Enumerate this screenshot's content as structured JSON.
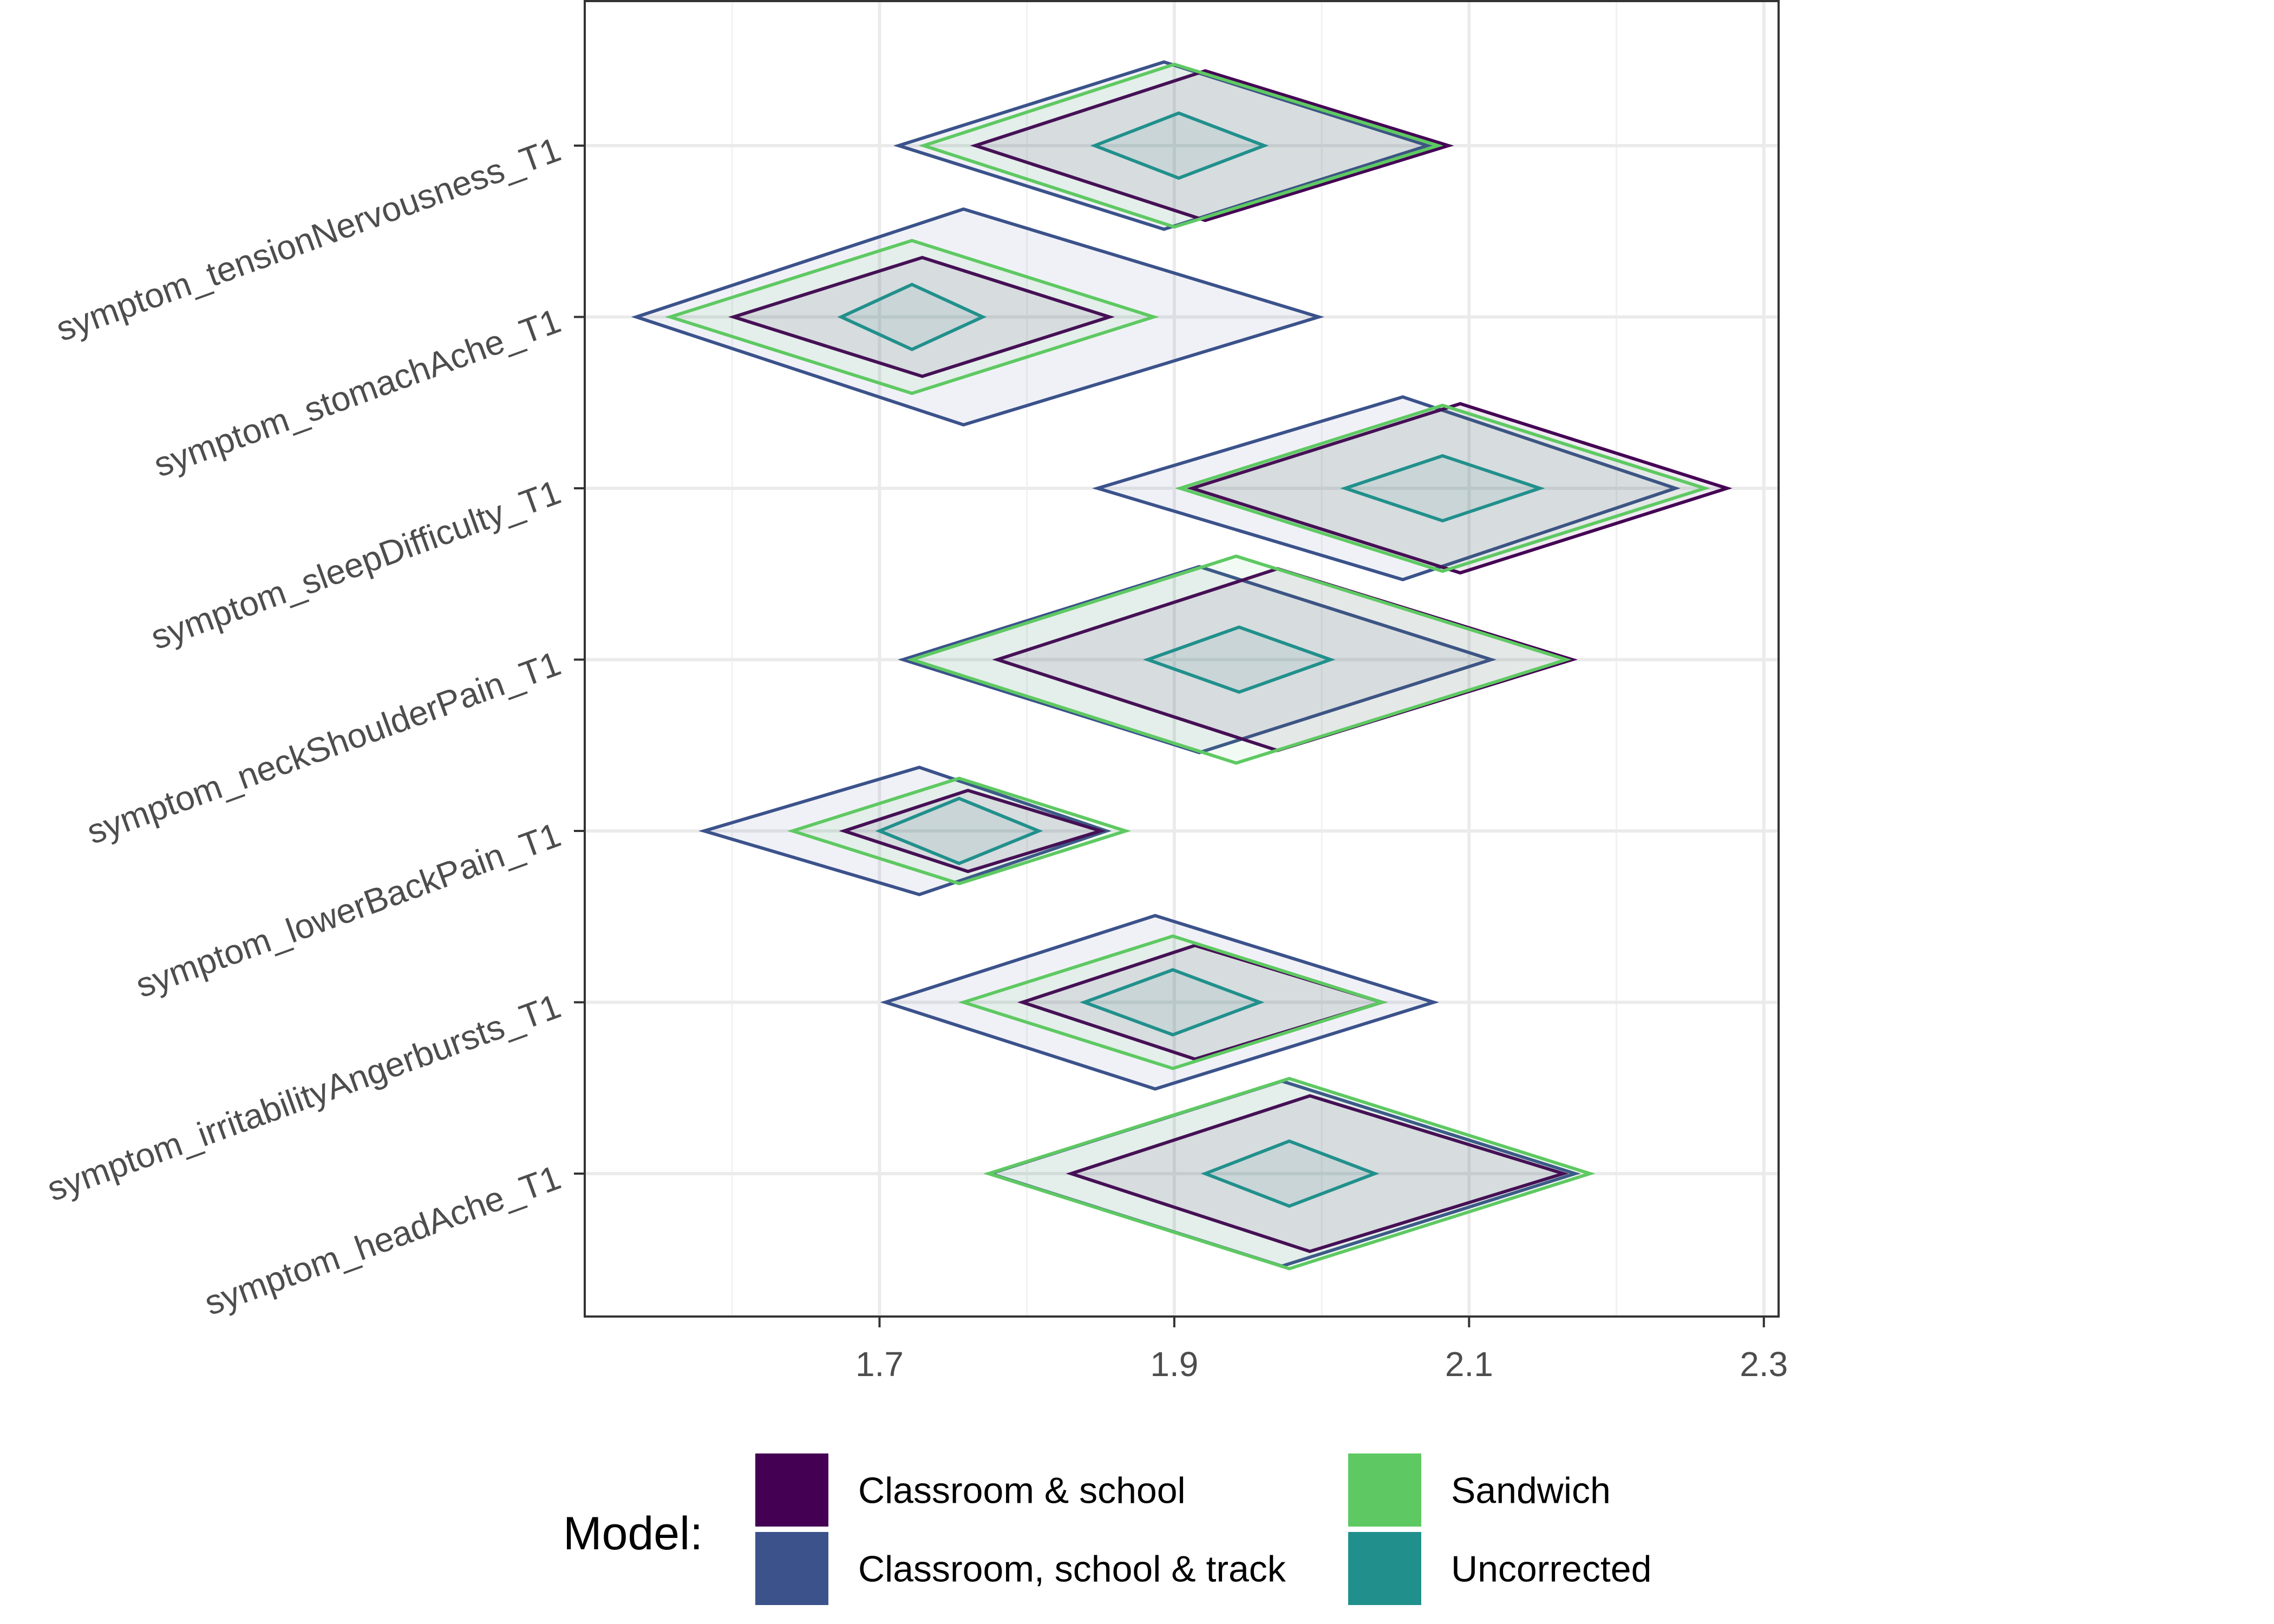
{
  "chart_data": {
    "type": "diamond-interval",
    "title": "",
    "xlabel": "",
    "ylabel": "",
    "xlim": [
      1.5,
      2.31
    ],
    "x_ticks": [
      "1.7",
      "1.9",
      "2.1",
      "2.3"
    ],
    "x_tick_values": [
      1.7,
      1.9,
      2.1,
      2.3
    ],
    "grid": true,
    "categories": [
      "symptom_tensionNervousness_T1",
      "symptom_stomachAche_T1",
      "symptom_sleepDifficulty_T1",
      "symptom_neckShoulderPain_T1",
      "symptom_lowerBackPain_T1",
      "symptom_irritabilityAngerbursts_T1",
      "symptom_headAche_T1"
    ],
    "legend": {
      "title": "Model:",
      "position": "bottom"
    },
    "series": [
      {
        "name": "Classroom, school & track",
        "color": "#3b528b",
        "fill": "#3b528b",
        "intervals": [
          {
            "lower": 1.713,
            "estimate": 1.893,
            "upper": 2.072
          },
          {
            "lower": 1.535,
            "estimate": 1.757,
            "upper": 1.998
          },
          {
            "lower": 1.848,
            "estimate": 2.055,
            "upper": 2.24
          },
          {
            "lower": 1.716,
            "estimate": 1.917,
            "upper": 2.115
          },
          {
            "lower": 1.581,
            "estimate": 1.727,
            "upper": 1.854
          },
          {
            "lower": 1.704,
            "estimate": 1.887,
            "upper": 2.076
          },
          {
            "lower": 1.775,
            "estimate": 1.973,
            "upper": 2.172
          }
        ]
      },
      {
        "name": "Classroom & school",
        "color": "#440154",
        "fill": "#440154",
        "intervals": [
          {
            "lower": 1.765,
            "estimate": 1.921,
            "upper": 2.086
          },
          {
            "lower": 1.601,
            "estimate": 1.729,
            "upper": 1.856
          },
          {
            "lower": 1.912,
            "estimate": 2.094,
            "upper": 2.275
          },
          {
            "lower": 1.78,
            "estimate": 1.97,
            "upper": 2.17
          },
          {
            "lower": 1.676,
            "estimate": 1.76,
            "upper": 1.85
          },
          {
            "lower": 1.797,
            "estimate": 1.914,
            "upper": 2.041
          },
          {
            "lower": 1.83,
            "estimate": 1.992,
            "upper": 2.164
          }
        ]
      },
      {
        "name": "Sandwich",
        "color": "#5ec962",
        "fill": "#5ec962",
        "intervals": [
          {
            "lower": 1.73,
            "estimate": 1.9,
            "upper": 2.079
          },
          {
            "lower": 1.558,
            "estimate": 1.722,
            "upper": 1.886
          },
          {
            "lower": 1.904,
            "estimate": 2.082,
            "upper": 2.26
          },
          {
            "lower": 1.722,
            "estimate": 1.942,
            "upper": 2.166
          },
          {
            "lower": 1.641,
            "estimate": 1.754,
            "upper": 1.867
          },
          {
            "lower": 1.757,
            "estimate": 1.899,
            "upper": 2.041
          },
          {
            "lower": 1.774,
            "estimate": 1.978,
            "upper": 2.182
          }
        ]
      },
      {
        "name": "Uncorrected",
        "color": "#21908c",
        "fill": "#21908c",
        "intervals": [
          {
            "lower": 1.846,
            "estimate": 1.903,
            "upper": 1.961
          },
          {
            "lower": 1.674,
            "estimate": 1.722,
            "upper": 1.77
          },
          {
            "lower": 2.016,
            "estimate": 2.082,
            "upper": 2.148
          },
          {
            "lower": 1.882,
            "estimate": 1.944,
            "upper": 2.006
          },
          {
            "lower": 1.7,
            "estimate": 1.754,
            "upper": 1.808
          },
          {
            "lower": 1.839,
            "estimate": 1.899,
            "upper": 1.958
          },
          {
            "lower": 1.921,
            "estimate": 1.978,
            "upper": 2.036
          }
        ]
      }
    ],
    "legend_order": [
      "Classroom & school",
      "Classroom, school & track",
      "Sandwich",
      "Uncorrected"
    ]
  }
}
